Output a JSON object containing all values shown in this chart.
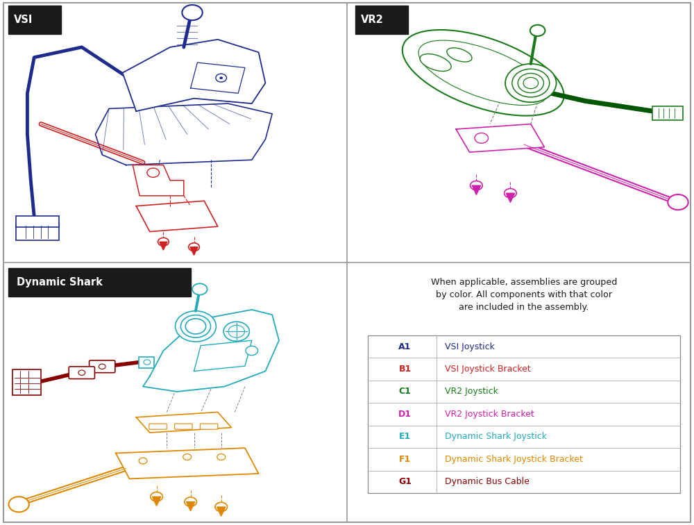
{
  "bg_color": "#ffffff",
  "border_color": "#999999",
  "divider_color": "#999999",
  "panel_label_bg": "#1a1a1a",
  "panel_label_fg": "#ffffff",
  "colors": {
    "vsi_joystick": "#1e2b8c",
    "vsi_bracket": "#cc2222",
    "vr2_joystick": "#1a7a1a",
    "vr2_bracket": "#cc22aa",
    "dynamic_joystick": "#22aabb",
    "dynamic_bracket": "#dd8800",
    "dynamic_bus_cable": "#880000"
  },
  "legend_header": "When applicable, assemblies are grouped\nby color. All components with that color\nare included in the assembly.",
  "legend_items": [
    {
      "code": "A1",
      "label": "VSI Joystick",
      "color": "#1e2b8c"
    },
    {
      "code": "B1",
      "label": "VSI Joystick Bracket",
      "color": "#cc2222"
    },
    {
      "code": "C1",
      "label": "VR2 Joystick",
      "color": "#1a7a1a"
    },
    {
      "code": "D1",
      "label": "VR2 Joystick Bracket",
      "color": "#cc22aa"
    },
    {
      "code": "E1",
      "label": "Dynamic Shark Joystick",
      "color": "#22aabb"
    },
    {
      "code": "F1",
      "label": "Dynamic Shark Joystick Bracket",
      "color": "#dd8800"
    },
    {
      "code": "G1",
      "label": "Dynamic Bus Cable",
      "color": "#880000"
    }
  ],
  "panel_labels": [
    "VSI",
    "VR2",
    "Dynamic Shark"
  ]
}
